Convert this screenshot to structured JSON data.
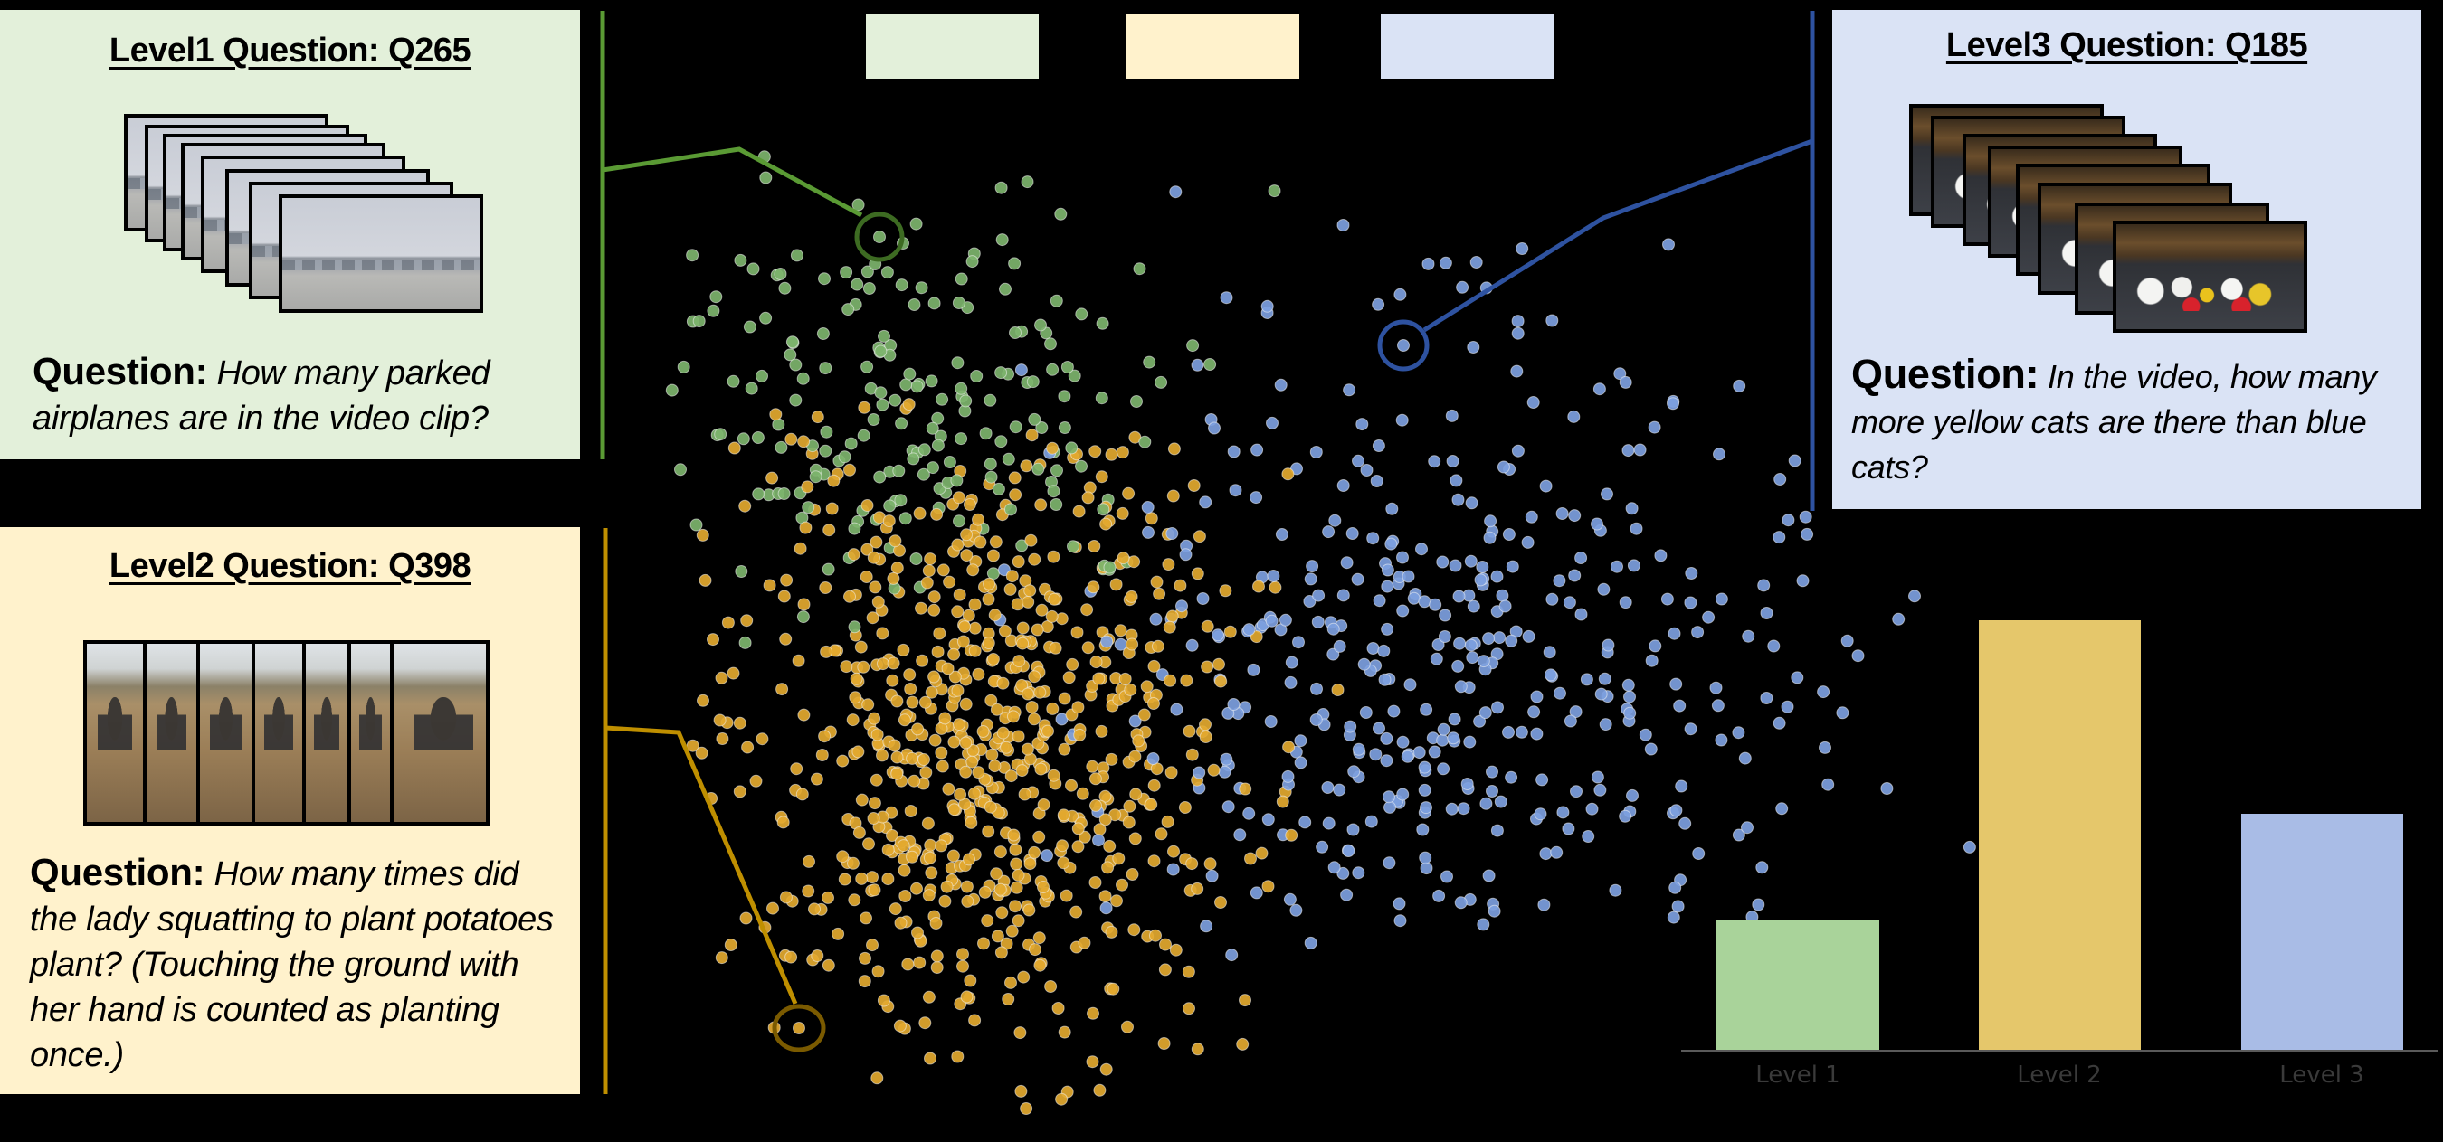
{
  "colors": {
    "background": "#000000",
    "level1_panel": "#e3f0da",
    "level2_panel": "#fff2cc",
    "level3_panel": "#dae3f5",
    "level1_line": "#5a9a34",
    "level1_circle": "#3d6b22",
    "level2_line": "#bf8f00",
    "level2_circle": "#7a5a00",
    "level3_line": "#2e52a0",
    "level3_circle": "#2e52a0",
    "level1_dot": "#7db46c",
    "level2_dot": "#e3a92f",
    "level3_dot": "#7d9fe0",
    "bar_level1": "#a9d39a",
    "bar_level2": "#e5c76b",
    "bar_level3": "#a9bce6",
    "axis": "#5a5a5a",
    "axis_label": "#3a3a3a"
  },
  "legend": {
    "items": [
      {
        "level": "Level 1",
        "color": "#e3f0da"
      },
      {
        "level": "Level 2",
        "color": "#fff2cc"
      },
      {
        "level": "Level 3",
        "color": "#dae3f5"
      }
    ]
  },
  "examples": {
    "level1": {
      "title": "Level1 Question: Q265",
      "question_label": "Question:",
      "question_text": " How many parked airplanes are in the video clip?",
      "frame_count": 8,
      "frame_icon": "airport-video-frame"
    },
    "level2": {
      "title": "Level2 Question: Q398",
      "question_label": "Question:",
      "question_text": " How many times did the lady squatting to plant potatoes plant? (Touching the ground with her hand is counted as planting once.)",
      "frame_count": 7,
      "frame_icon": "field-planting-video-frame"
    },
    "level3": {
      "title": "Level3 Question: Q185",
      "question_label": "Question:",
      "question_text": " In the video, how many more yellow cats are there than blue cats?",
      "frame_count": 8,
      "frame_icon": "lucky-cats-video-frame"
    }
  },
  "chart_data": [
    {
      "type": "scatter",
      "title": "",
      "xlabel": "",
      "ylabel": "",
      "grid": false,
      "legend_position": "top-center (color swatches only, no text)",
      "series": [
        {
          "name": "Level 1",
          "color": "#7db46c",
          "approx_count": 200,
          "center": [
            1000,
            450
          ],
          "spread": [
            150,
            120
          ],
          "extent_x": [
            740,
            1420
          ],
          "extent_y": [
            160,
            720
          ]
        },
        {
          "name": "Level 2",
          "color": "#e3a92f",
          "approx_count": 720,
          "center": [
            1090,
            810
          ],
          "spread": [
            140,
            170
          ],
          "extent_x": [
            760,
            1480
          ],
          "extent_y": [
            440,
            1240
          ]
        },
        {
          "name": "Level 3",
          "color": "#7d9fe0",
          "approx_count": 420,
          "center": [
            1600,
            720
          ],
          "spread": [
            220,
            180
          ],
          "extent_x": [
            1100,
            2180
          ],
          "extent_y": [
            200,
            1060
          ]
        }
      ],
      "highlighted_points": [
        {
          "series": "Level 1",
          "label": "Q265",
          "x": 972,
          "y": 262
        },
        {
          "series": "Level 2",
          "label": "Q398",
          "x": 883,
          "y": 1137
        },
        {
          "series": "Level 3",
          "label": "Q185",
          "x": 1551,
          "y": 382
        }
      ]
    },
    {
      "type": "bar",
      "title": "",
      "xlabel": "",
      "ylabel": "",
      "categories": [
        "Level 1",
        "Level 2",
        "Level 3"
      ],
      "values": [
        0.3,
        1.0,
        0.55
      ],
      "value_note": "relative heights (no y-axis shown); pixel heights 145, 476, 262",
      "colors": [
        "#a9d39a",
        "#e5c76b",
        "#a9bce6"
      ],
      "ylim": [
        0,
        1.0
      ],
      "grid": false
    }
  ],
  "bar_chart": {
    "labels": [
      "Level 1",
      "Level 2",
      "Level 3"
    ]
  }
}
